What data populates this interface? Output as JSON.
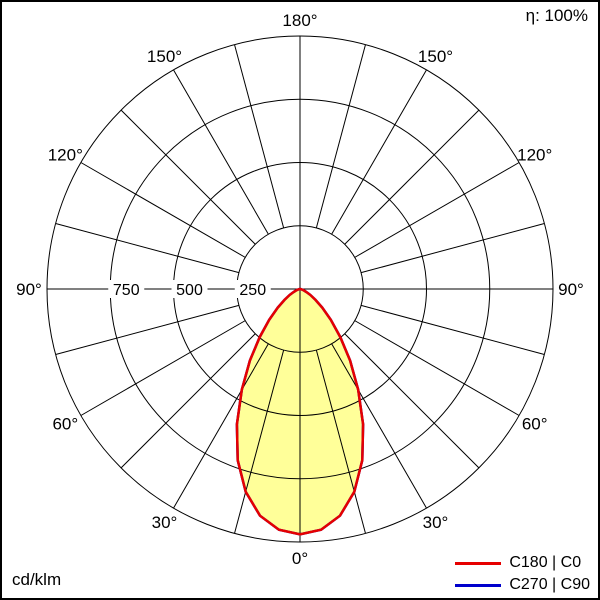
{
  "chart_data": {
    "type": "polar",
    "unit": "cd/klm",
    "efficiency_label": "η: 100%",
    "radial_max": 1000,
    "angle_grid_step_deg": 15,
    "grid": true,
    "legend_position": "bottom-right",
    "radial_ticks": [
      {
        "value": 250,
        "text": "250"
      },
      {
        "value": 500,
        "text": "500"
      },
      {
        "value": 750,
        "text": "750"
      }
    ],
    "angle_labels": [
      {
        "deg": 0,
        "text": "0°"
      },
      {
        "deg": 30,
        "text": "30°"
      },
      {
        "deg": 60,
        "text": "60°"
      },
      {
        "deg": 90,
        "text": "90°"
      },
      {
        "deg": 120,
        "text": "120°"
      },
      {
        "deg": 150,
        "text": "150°"
      },
      {
        "deg": 180,
        "text": "180°"
      }
    ],
    "series": [
      {
        "name": "C180 | C0",
        "color": "#e60000",
        "fill": "#ffff99",
        "angles_deg": [
          0,
          5,
          10,
          15,
          20,
          25,
          30,
          35,
          40,
          45,
          50,
          55,
          60,
          65,
          70,
          75,
          80,
          85,
          90
        ],
        "values": [
          970,
          955,
          910,
          830,
          720,
          590,
          460,
          345,
          248,
          172,
          115,
          75,
          47,
          28,
          16,
          8,
          3,
          1,
          0
        ]
      },
      {
        "name": "C270 | C90",
        "color": "#0000cc",
        "fill": "#ffff99",
        "angles_deg": [
          0,
          5,
          10,
          15,
          20,
          25,
          30,
          35,
          40,
          45,
          50,
          55,
          60,
          65,
          70,
          75,
          80,
          85,
          90
        ],
        "values": [
          970,
          955,
          910,
          830,
          720,
          590,
          460,
          345,
          248,
          172,
          115,
          75,
          47,
          28,
          16,
          8,
          3,
          1,
          0
        ]
      }
    ]
  }
}
